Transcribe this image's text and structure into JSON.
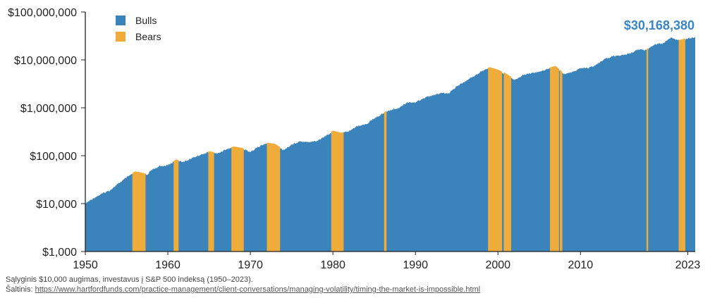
{
  "chart_data": {
    "type": "area",
    "scale": "log",
    "ylim": [
      1000,
      100000000
    ],
    "xlim": [
      1950,
      2023.9
    ],
    "y_ticks": [
      {
        "value": 100000000,
        "label": "$100,000,000"
      },
      {
        "value": 10000000,
        "label": "$10,000,000"
      },
      {
        "value": 1000000,
        "label": "$1,000,000"
      },
      {
        "value": 100000,
        "label": "$100,000"
      },
      {
        "value": 10000,
        "label": "$10,000"
      },
      {
        "value": 1000,
        "label": "$1,000"
      }
    ],
    "x_ticks": [
      {
        "value": 1950,
        "label": "1950"
      },
      {
        "value": 1960,
        "label": "1960"
      },
      {
        "value": 1970,
        "label": "1970"
      },
      {
        "value": 1980,
        "label": "1980"
      },
      {
        "value": 1990,
        "label": "1990"
      },
      {
        "value": 2000,
        "label": "2000"
      },
      {
        "value": 2010,
        "label": "2010"
      },
      {
        "value": 2023,
        "label": "2023"
      }
    ],
    "legend": {
      "placement": "top-left",
      "items": [
        {
          "name": "Bulls",
          "color": "#3a83bb"
        },
        {
          "name": "Bears",
          "color": "#f0ac3a"
        }
      ]
    },
    "final_value_label": "$30,168,380",
    "series": [
      {
        "name": "Bulls",
        "x": [
          1950,
          1951,
          1952,
          1953,
          1954,
          1955,
          1956,
          1956.5,
          1957.5,
          1958,
          1959,
          1960,
          1961,
          1962,
          1963,
          1964,
          1965,
          1966,
          1967,
          1968,
          1969,
          1970,
          1971,
          1972,
          1973,
          1974,
          1975,
          1976,
          1977,
          1978,
          1979,
          1980,
          1981,
          1982,
          1983,
          1984,
          1985,
          1986,
          1987,
          1988,
          1989,
          1990,
          1991,
          1992,
          1993,
          1994,
          1995,
          1996,
          1997,
          1998,
          1999,
          2000,
          2001,
          2002,
          2003,
          2004,
          2005,
          2006,
          2007,
          2008,
          2009,
          2010,
          2011,
          2012,
          2013,
          2014,
          2015,
          2016,
          2017,
          2018,
          2019,
          2020,
          2021,
          2022,
          2023,
          2023.9
        ],
        "values": [
          10000,
          13000,
          16000,
          19000,
          26000,
          35000,
          45000,
          44000,
          40000,
          50000,
          60000,
          63000,
          80000,
          75000,
          90000,
          105000,
          120000,
          110000,
          135000,
          150000,
          140000,
          120000,
          155000,
          180000,
          170000,
          130000,
          170000,
          200000,
          195000,
          200000,
          250000,
          320000,
          290000,
          330000,
          420000,
          450000,
          600000,
          750000,
          900000,
          1000000,
          1300000,
          1300000,
          1600000,
          1800000,
          2000000,
          2000000,
          2800000,
          3500000,
          4500000,
          5800000,
          6800000,
          6000000,
          5000000,
          3800000,
          4800000,
          5300000,
          5600000,
          6500000,
          7200000,
          5000000,
          5600000,
          6700000,
          6800000,
          8000000,
          10500000,
          12000000,
          12500000,
          13500000,
          16500000,
          16000000,
          21000000,
          22000000,
          29000000,
          25000000,
          28000000,
          30168380
        ]
      },
      {
        "name": "Bears",
        "periods": [
          [
            1955.7,
            1957.3
          ],
          [
            1960.7,
            1961.3
          ],
          [
            1964.9,
            1965.6
          ],
          [
            1967.7,
            1969.2
          ],
          [
            1972.0,
            1973.6
          ],
          [
            1979.8,
            1981.3
          ],
          [
            1986.2,
            1986.5
          ],
          [
            1998.8,
            2000.5
          ],
          [
            2000.7,
            2001.6
          ],
          [
            2006.3,
            2007.4
          ],
          [
            2007.5,
            2007.8
          ],
          [
            2018.0,
            2018.2
          ],
          [
            2021.9,
            2022.7
          ]
        ]
      }
    ]
  },
  "captions": {
    "line1": "Sąlyginis $10,000 augimas, investavus į S&P 500 indeksą (1950–2023).",
    "source_label": "Šaltinis: ",
    "source_url": "https://www.hartfordfunds.com/practice-management/client-conversations/managing-volatility/timing-the-market-is-impossible.html"
  }
}
